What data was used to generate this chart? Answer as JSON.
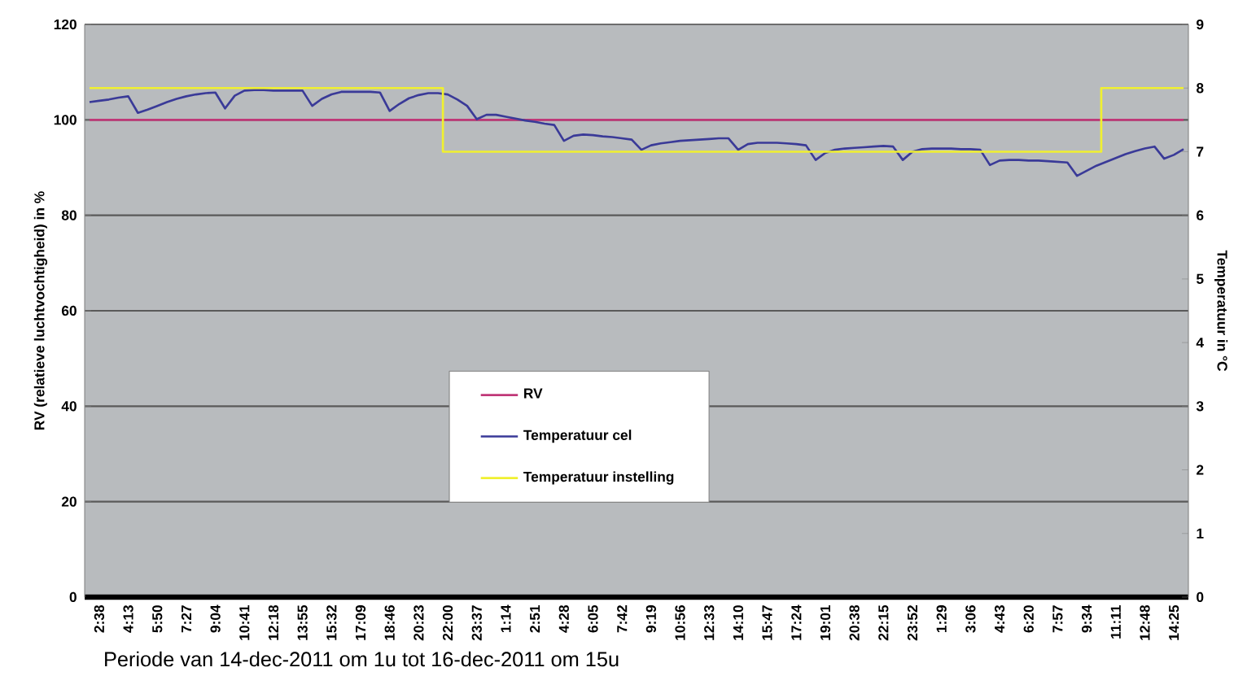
{
  "chart_data": {
    "type": "line",
    "xlabel": "Periode van 14-dec-2011 om 1u tot 16-dec-2011 om 15u",
    "ylabel": "RV (relatieve luchtvochtigheid) in %",
    "y2label": "Temperatuur in °C",
    "categories": [
      null,
      "2:38",
      null,
      null,
      "4:13",
      null,
      null,
      "5:50",
      null,
      null,
      "7:27",
      null,
      null,
      "9:04",
      null,
      null,
      "10:41",
      null,
      null,
      "12:18",
      null,
      null,
      "13:55",
      null,
      null,
      "15:32",
      null,
      null,
      "17:09",
      null,
      null,
      "18:46",
      null,
      null,
      "20:23",
      null,
      null,
      "22:00",
      null,
      null,
      "23:37",
      null,
      null,
      "1:14",
      null,
      null,
      "2:51",
      null,
      null,
      "4:28",
      null,
      null,
      "6:05",
      null,
      null,
      "7:42",
      null,
      null,
      "9:19",
      null,
      null,
      "10:56",
      null,
      null,
      "12:33",
      null,
      null,
      "14:10",
      null,
      null,
      "15:47",
      null,
      null,
      "17:24",
      null,
      null,
      "19:01",
      null,
      null,
      "20:38",
      null,
      null,
      "22:15",
      null,
      null,
      "23:52",
      null,
      null,
      "1:29",
      null,
      null,
      "3:06",
      null,
      null,
      "4:43",
      null,
      null,
      "6:20",
      null,
      null,
      "7:57",
      null,
      null,
      "9:34",
      null,
      null,
      "11:11",
      null,
      null,
      "12:48",
      null,
      null,
      "14:25",
      null
    ],
    "ylim": [
      0,
      120
    ],
    "yticks": [
      0,
      20,
      40,
      60,
      80,
      100,
      120
    ],
    "y2lim": [
      0,
      9
    ],
    "y2ticks": [
      0,
      1,
      2,
      3,
      4,
      5,
      6,
      7,
      8,
      9
    ],
    "grid": "y",
    "legend": "center",
    "marker": "none",
    "line_style": "solid",
    "series": [
      {
        "name": "RV",
        "color": "#c03878",
        "values": [
          100,
          100,
          100,
          100,
          100,
          100,
          100,
          100,
          100,
          100,
          100,
          100,
          100,
          100,
          100,
          100,
          100,
          100,
          100,
          100,
          100,
          100,
          100,
          100,
          100,
          100,
          100,
          100,
          100,
          100,
          100,
          100,
          100,
          100,
          100,
          100,
          100,
          100,
          100,
          100,
          100,
          100,
          100,
          100,
          100,
          100,
          100,
          100,
          100,
          100,
          100,
          100,
          100,
          100,
          100,
          100,
          100,
          100,
          100,
          100,
          100,
          100,
          100,
          100,
          100,
          100,
          100,
          100,
          100,
          100,
          100,
          100,
          100,
          100,
          100,
          100,
          100,
          100,
          100,
          100,
          100,
          100,
          100,
          100,
          100,
          100,
          100,
          100,
          100,
          100,
          100,
          100,
          100,
          100,
          100,
          100,
          100,
          100,
          100,
          100,
          100,
          100,
          100,
          100,
          100,
          100,
          100,
          100,
          100,
          100,
          100,
          100,
          100,
          100
        ]
      },
      {
        "name": "Temperatuur cel",
        "color": "#3a3a98",
        "axis": "y2",
        "values": [
          7.78,
          7.8,
          7.82,
          7.85,
          7.87,
          7.61,
          7.66,
          7.72,
          7.78,
          7.83,
          7.87,
          7.9,
          7.92,
          7.93,
          7.68,
          7.88,
          7.96,
          7.97,
          7.97,
          7.96,
          7.96,
          7.96,
          7.96,
          7.72,
          7.83,
          7.9,
          7.94,
          7.94,
          7.94,
          7.94,
          7.93,
          7.64,
          7.75,
          7.84,
          7.89,
          7.92,
          7.92,
          7.9,
          7.82,
          7.72,
          7.51,
          7.58,
          7.58,
          7.55,
          7.52,
          7.49,
          7.47,
          7.44,
          7.42,
          7.17,
          7.25,
          7.27,
          7.26,
          7.24,
          7.23,
          7.21,
          7.19,
          7.03,
          7.1,
          7.13,
          7.15,
          7.17,
          7.18,
          7.19,
          7.2,
          7.21,
          7.21,
          7.03,
          7.12,
          7.14,
          7.14,
          7.14,
          7.13,
          7.12,
          7.1,
          6.87,
          6.98,
          7.03,
          7.05,
          7.06,
          7.07,
          7.08,
          7.09,
          7.08,
          6.87,
          7.0,
          7.04,
          7.05,
          7.05,
          7.05,
          7.04,
          7.04,
          7.03,
          6.79,
          6.86,
          6.87,
          6.87,
          6.86,
          6.86,
          6.85,
          6.84,
          6.83,
          6.62,
          6.7,
          6.78,
          6.84,
          6.9,
          6.96,
          7.01,
          7.05,
          7.08,
          6.89,
          6.95,
          7.04
        ]
      },
      {
        "name": "Temperatuur instelling",
        "color": "#f0f030",
        "axis": "y2",
        "type": "step",
        "values": [
          8,
          8,
          8,
          8,
          8,
          8,
          8,
          8,
          8,
          8,
          8,
          8,
          8,
          8,
          8,
          8,
          8,
          8,
          8,
          8,
          8,
          8,
          8,
          8,
          8,
          8,
          8,
          8,
          8,
          8,
          8,
          8,
          8,
          8,
          8,
          8,
          8,
          7,
          7,
          7,
          7,
          7,
          7,
          7,
          7,
          7,
          7,
          7,
          7,
          7,
          7,
          7,
          7,
          7,
          7,
          7,
          7,
          7,
          7,
          7,
          7,
          7,
          7,
          7,
          7,
          7,
          7,
          7,
          7,
          7,
          7,
          7,
          7,
          7,
          7,
          7,
          7,
          7,
          7,
          7,
          7,
          7,
          7,
          7,
          7,
          7,
          7,
          7,
          7,
          7,
          7,
          7,
          7,
          7,
          7,
          7,
          7,
          7,
          7,
          7,
          7,
          7,
          7,
          7,
          7,
          8,
          8,
          8,
          8,
          8,
          8,
          8,
          8,
          8
        ]
      }
    ]
  }
}
